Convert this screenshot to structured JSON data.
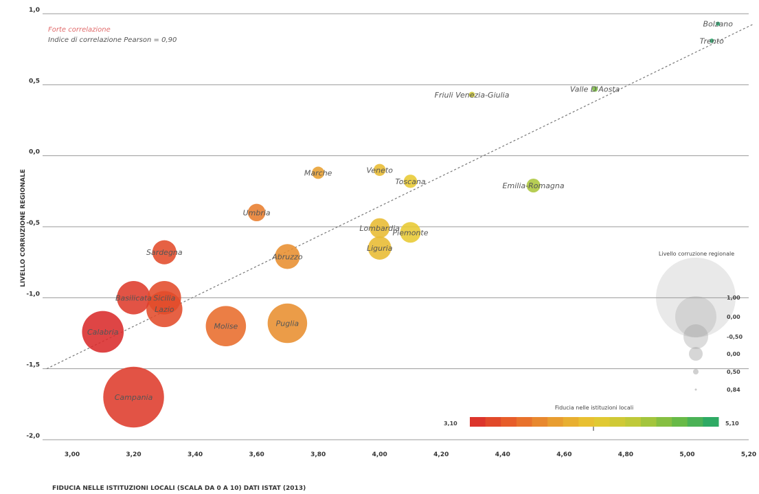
{
  "chart_data": {
    "type": "scatter",
    "notes": [
      "Forte correlazione",
      "Indice di correlazione Pearson = 0,90"
    ],
    "xlabel": "FIDUCIA NELLE ISTITUZIONI LOCALI (SCALA DA 0 A 10) DATI ISTAT (2013)",
    "ylabel": "LIVELLO CORRUZIONE REGIONALE",
    "xlim": [
      3.0,
      5.2
    ],
    "ylim": [
      -2.0,
      1.0
    ],
    "x_ticks": [
      "3,00",
      "3,20",
      "3,40",
      "3,60",
      "3,80",
      "4,00",
      "4,20",
      "4,40",
      "4,60",
      "4,80",
      "5,00",
      "5,20"
    ],
    "y_ticks": [
      {
        "value": 1.0,
        "label": "1,0"
      },
      {
        "value": 0.5,
        "label": "0,5"
      },
      {
        "value": 0.0,
        "label": "0,0"
      },
      {
        "value": -0.5,
        "label": "-0,5"
      },
      {
        "value": -1.0,
        "label": "-1,0"
      },
      {
        "value": -1.5,
        "label": "-1,5"
      },
      {
        "value": -2.0,
        "label": "-2,0"
      }
    ],
    "trendline": {
      "x": [
        3.0,
        5.2
      ],
      "y": [
        -1.5,
        0.93
      ]
    },
    "points": [
      {
        "name": "Bolzano",
        "x": 5.1,
        "y": 0.93
      },
      {
        "name": "Trento",
        "x": 5.08,
        "y": 0.81
      },
      {
        "name": "Friuli Venezia-Giulia",
        "x": 4.3,
        "y": 0.43
      },
      {
        "name": "Valle D'Aosta",
        "x": 4.7,
        "y": 0.47
      },
      {
        "name": "Marche",
        "x": 3.8,
        "y": -0.12
      },
      {
        "name": "Veneto",
        "x": 4.0,
        "y": -0.1
      },
      {
        "name": "Toscana",
        "x": 4.1,
        "y": -0.18
      },
      {
        "name": "Emilia-Romagna",
        "x": 4.5,
        "y": -0.21
      },
      {
        "name": "Umbria",
        "x": 3.6,
        "y": -0.4
      },
      {
        "name": "Lombardia",
        "x": 4.0,
        "y": -0.51
      },
      {
        "name": "Piemonte",
        "x": 4.1,
        "y": -0.54
      },
      {
        "name": "Liguria",
        "x": 4.0,
        "y": -0.65
      },
      {
        "name": "Sardegna",
        "x": 3.3,
        "y": -0.68
      },
      {
        "name": "Abruzzo",
        "x": 3.7,
        "y": -0.71
      },
      {
        "name": "Basilicata",
        "x": 3.2,
        "y": -1.0
      },
      {
        "name": "Sicilia",
        "x": 3.3,
        "y": -1.0
      },
      {
        "name": "Lazio",
        "x": 3.3,
        "y": -1.08
      },
      {
        "name": "Calabria",
        "x": 3.1,
        "y": -1.24
      },
      {
        "name": "Molise",
        "x": 3.5,
        "y": -1.2
      },
      {
        "name": "Puglia",
        "x": 3.7,
        "y": -1.18
      },
      {
        "name": "Campania",
        "x": 3.2,
        "y": -1.7
      }
    ],
    "size_legend": {
      "title": "Livello corruzione regionale",
      "values": [
        "1,00",
        "0,00",
        "-0,50",
        "0,00",
        "0,50",
        "0,84"
      ]
    },
    "color_legend": {
      "title": "Fiducia nelle istituzioni locali",
      "min_label": "3,10",
      "max_label": "5,10",
      "colors": [
        "#d92b2b",
        "#e8602a",
        "#e89a30",
        "#e8c932",
        "#bcc93a",
        "#6dbb45",
        "#1fa66b"
      ]
    }
  }
}
